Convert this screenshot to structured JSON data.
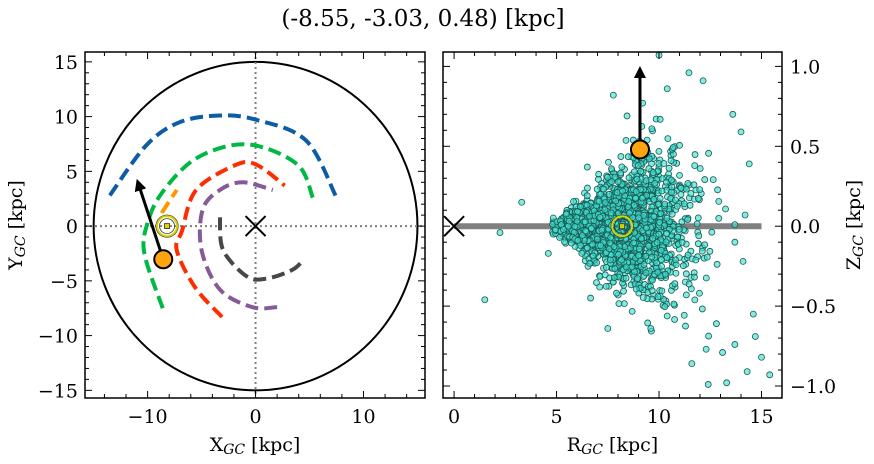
{
  "title": "(-8.55, -3.03, 0.48) [kpc]",
  "chart_data": [
    {
      "type": "line",
      "panel": "left",
      "xlabel_main": "X",
      "xlabel_sub": "GC",
      "xlabel_unit": " [kpc]",
      "ylabel_main": "Y",
      "ylabel_sub": "GC",
      "ylabel_unit": " [kpc]",
      "xlim": [
        -15.8,
        15.7
      ],
      "ylim": [
        -15.7,
        15.9
      ],
      "xticks": [
        "-10",
        "0",
        "10"
      ],
      "xtick_values": [
        -10,
        0,
        10
      ],
      "yticks": [
        "-15",
        "-10",
        "-5",
        "0",
        "5",
        "10",
        "15"
      ],
      "ytick_values": [
        -15,
        -10,
        -5,
        0,
        5,
        10,
        15
      ],
      "grid": false,
      "boundary_circle_radius": 15,
      "reference_lines": {
        "x": 0,
        "y": 0,
        "style": "dotted",
        "color": "#808080"
      },
      "series": [
        {
          "color": "#0c5da5",
          "style": "dashed",
          "points": [
            [
              -13.5,
              2.8
            ],
            [
              -10.1,
              7.4
            ],
            [
              -7,
              9.5
            ],
            [
              -3.3,
              10.1
            ],
            [
              0.1,
              9.7
            ],
            [
              4.7,
              7.8
            ],
            [
              7.5,
              2.6
            ]
          ]
        },
        {
          "color": "#00b945",
          "style": "dashed",
          "points": [
            [
              -8.6,
              -7.5
            ],
            [
              -10.3,
              -2.5
            ],
            [
              -10,
              0.3
            ],
            [
              -8.7,
              3
            ],
            [
              -5.8,
              6
            ],
            [
              -2.1,
              7.4
            ],
            [
              1,
              7.1
            ],
            [
              4.1,
              5.4
            ],
            [
              5.3,
              2.6
            ]
          ]
        },
        {
          "color": "#ff9500",
          "style": "dashed",
          "points": [
            [
              -8.7,
              1.2
            ],
            [
              -7.3,
              3.3
            ]
          ]
        },
        {
          "color": "#ff2c00",
          "style": "dashed",
          "points": [
            [
              -3.1,
              -8.3
            ],
            [
              -5.6,
              -5.6
            ],
            [
              -7.3,
              -2.2
            ],
            [
              -6.8,
              -0.4
            ],
            [
              -5.5,
              3.3
            ],
            [
              -1.8,
              5.6
            ],
            [
              0.1,
              5.6
            ],
            [
              2.7,
              3.7
            ]
          ]
        },
        {
          "color": "#845b97",
          "style": "dashed",
          "points": [
            [
              2,
              -7.4
            ],
            [
              -0.3,
              -7.4
            ],
            [
              -3.3,
              -5.8
            ],
            [
              -5,
              -2.2
            ],
            [
              -4.9,
              1.5
            ],
            [
              -3.3,
              3.3
            ],
            [
              -1.2,
              4
            ],
            [
              1.6,
              3.3
            ]
          ]
        },
        {
          "color": "#474747",
          "style": "dashed",
          "points": [
            [
              -3.3,
              0.8
            ],
            [
              -3,
              -2.2
            ],
            [
              -0.8,
              -4.6
            ],
            [
              1,
              -4.8
            ],
            [
              3.4,
              -4
            ],
            [
              4.5,
              -3
            ]
          ]
        }
      ],
      "markers": {
        "galactic_center": {
          "x": 0,
          "y": 0,
          "symbol": "x"
        },
        "sun": {
          "x": -8.2,
          "y": 0,
          "symbol": "sun",
          "color": "#d4d400"
        },
        "object": {
          "x": -8.55,
          "y": -3.03,
          "color": "#ffa40f"
        },
        "velocity_arrow": {
          "from": [
            -8.55,
            -3.03
          ],
          "to": [
            -10.9,
            4.0
          ]
        }
      }
    },
    {
      "type": "scatter",
      "panel": "right",
      "xlabel_main": "R",
      "xlabel_sub": "GC",
      "xlabel_unit": " [kpc]",
      "ylabel_main": "Z",
      "ylabel_sub": "GC",
      "ylabel_unit": " [kpc]",
      "ylabel_position": "right",
      "xlim": [
        -0.54,
        16.0
      ],
      "ylim": [
        -1.075,
        1.09
      ],
      "xticks": [
        "0",
        "5",
        "10",
        "15"
      ],
      "xtick_values": [
        0,
        5,
        10,
        15
      ],
      "yticks": [
        "-1.0",
        "-0.5",
        "0.0",
        "0.5",
        "1.0"
      ],
      "ytick_values": [
        -1,
        -0.5,
        0,
        0.5,
        1
      ],
      "grid": false,
      "point_color": "#40e0d0",
      "point_edge": "#1a5a55",
      "disk_line": {
        "x": [
          0,
          15
        ],
        "y": 0,
        "color": "#808080"
      },
      "points": [
        [
          10.0,
          1.07
        ],
        [
          11.46,
          0.96
        ],
        [
          12.15,
          0.91
        ],
        [
          7.77,
          0.82
        ],
        [
          8.44,
          0.69
        ],
        [
          10.4,
          0.86
        ],
        [
          9.2,
          0.77
        ],
        [
          13.6,
          0.7
        ],
        [
          14.0,
          0.59
        ],
        [
          14.4,
          0.39
        ],
        [
          1.5,
          -0.46
        ],
        [
          3.3,
          0.15
        ],
        [
          2.24,
          -0.04
        ],
        [
          7.5,
          -0.64
        ],
        [
          9.6,
          -0.64
        ],
        [
          14.6,
          -0.55
        ],
        [
          14.7,
          -0.69
        ],
        [
          15.0,
          -0.82
        ],
        [
          15.4,
          -0.93
        ],
        [
          12.4,
          -0.99
        ],
        [
          13.3,
          -0.98
        ],
        [
          11.6,
          -0.86
        ],
        [
          14.3,
          -0.91
        ],
        [
          13.7,
          -0.74
        ],
        [
          12.3,
          -0.77
        ],
        [
          13.1,
          -0.79
        ],
        [
          12.8,
          -0.61
        ],
        [
          4.6,
          -0.17
        ],
        [
          6.5,
          0.37
        ],
        [
          14.1,
          -0.22
        ],
        [
          13.7,
          -0.1
        ],
        [
          14.2,
          0.07
        ],
        [
          13.7,
          0.01
        ]
      ],
      "markers": {
        "galactic_center": {
          "x": 0,
          "y": 0,
          "symbol": "x"
        },
        "sun": {
          "x": 8.2,
          "y": 0,
          "symbol": "sun",
          "color": "#d4d400"
        },
        "object": {
          "x": 9.07,
          "y": 0.48,
          "color": "#ffa40f"
        },
        "velocity_arrow": {
          "from": [
            9.07,
            0.48
          ],
          "to": [
            9.07,
            0.98
          ]
        }
      }
    }
  ]
}
